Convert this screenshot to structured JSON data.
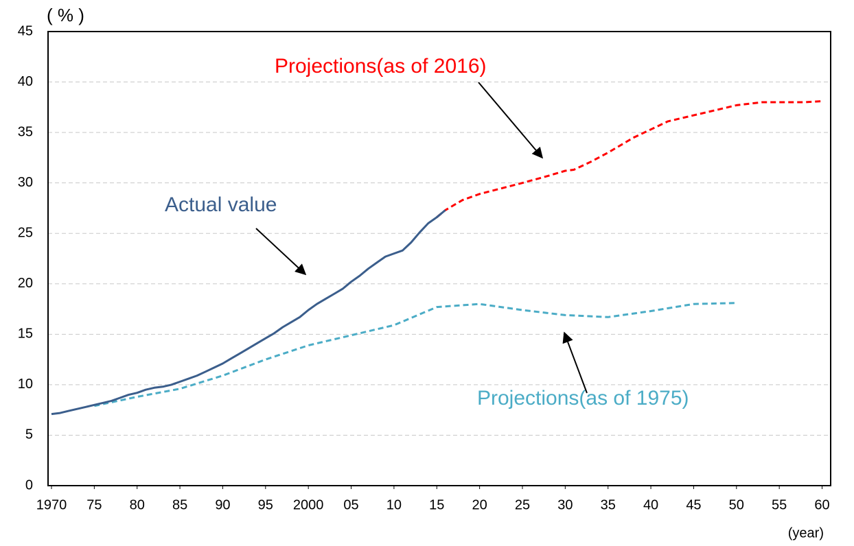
{
  "chart_data": {
    "type": "line",
    "y_label": "( % )",
    "x_label": "(year)",
    "xlim": [
      1969.6,
      2061
    ],
    "ylim": [
      0,
      45
    ],
    "xticks": [
      1970,
      {
        "value": 1975,
        "label": "75"
      },
      {
        "value": 1980,
        "label": "80"
      },
      {
        "value": 1985,
        "label": "85"
      },
      {
        "value": 1990,
        "label": "90"
      },
      {
        "value": 1995,
        "label": "95"
      },
      2000,
      {
        "value": 2005,
        "label": "05"
      },
      {
        "value": 2010,
        "label": "10"
      },
      {
        "value": 2015,
        "label": "15"
      },
      {
        "value": 2020,
        "label": "20"
      },
      {
        "value": 2025,
        "label": "25"
      },
      {
        "value": 2030,
        "label": "30"
      },
      {
        "value": 2035,
        "label": "35"
      },
      {
        "value": 2040,
        "label": "40"
      },
      {
        "value": 2045,
        "label": "45"
      },
      {
        "value": 2050,
        "label": "50"
      },
      {
        "value": 2055,
        "label": "55"
      },
      {
        "value": 2060,
        "label": "60"
      }
    ],
    "yticks": [
      0,
      5,
      10,
      15,
      20,
      25,
      30,
      35,
      40,
      45
    ],
    "grid": true,
    "series": [
      {
        "name": "Actual value",
        "color": "#3b5e8c",
        "dashed": false,
        "x": [
          1970,
          1971,
          1972,
          1973,
          1974,
          1975,
          1976,
          1977,
          1978,
          1979,
          1980,
          1981,
          1982,
          1983,
          1984,
          1985,
          1986,
          1987,
          1988,
          1989,
          1990,
          1991,
          1992,
          1993,
          1994,
          1995,
          1996,
          1997,
          1998,
          1999,
          2000,
          2001,
          2002,
          2003,
          2004,
          2005,
          2006,
          2007,
          2008,
          2009,
          2010,
          2011,
          2012,
          2013,
          2014,
          2015,
          2016
        ],
        "values": [
          7.1,
          7.2,
          7.4,
          7.6,
          7.8,
          8.0,
          8.2,
          8.4,
          8.7,
          9.0,
          9.2,
          9.5,
          9.7,
          9.8,
          10.0,
          10.3,
          10.6,
          10.9,
          11.3,
          11.7,
          12.1,
          12.6,
          13.1,
          13.6,
          14.1,
          14.6,
          15.1,
          15.7,
          16.2,
          16.7,
          17.4,
          18.0,
          18.5,
          19.0,
          19.5,
          20.2,
          20.8,
          21.5,
          22.1,
          22.7,
          23.0,
          23.3,
          24.1,
          25.1,
          26.0,
          26.6,
          27.3
        ]
      },
      {
        "name": "Projections(as of 2016)",
        "color": "#ff0000",
        "dashed": true,
        "x": [
          2015,
          2016,
          2017,
          2018,
          2020,
          2025,
          2028,
          2030,
          2031,
          2033,
          2035,
          2038,
          2040,
          2042,
          2045,
          2048,
          2050,
          2053,
          2055,
          2058,
          2060
        ],
        "values": [
          26.6,
          27.3,
          27.8,
          28.3,
          28.9,
          30.0,
          30.7,
          31.2,
          31.3,
          32.1,
          33.0,
          34.5,
          35.3,
          36.1,
          36.7,
          37.3,
          37.7,
          38.0,
          38.0,
          38.0,
          38.1
        ]
      },
      {
        "name": "Projections(as of 1975)",
        "color": "#4bacc6",
        "dashed": true,
        "x": [
          1975,
          1980,
          1985,
          1990,
          1995,
          2000,
          2005,
          2010,
          2015,
          2020,
          2025,
          2030,
          2035,
          2040,
          2045,
          2050
        ],
        "values": [
          7.9,
          8.8,
          9.6,
          10.9,
          12.5,
          13.9,
          14.9,
          15.9,
          17.7,
          18.0,
          17.4,
          16.9,
          16.7,
          17.3,
          18.0,
          18.1
        ]
      }
    ]
  }
}
